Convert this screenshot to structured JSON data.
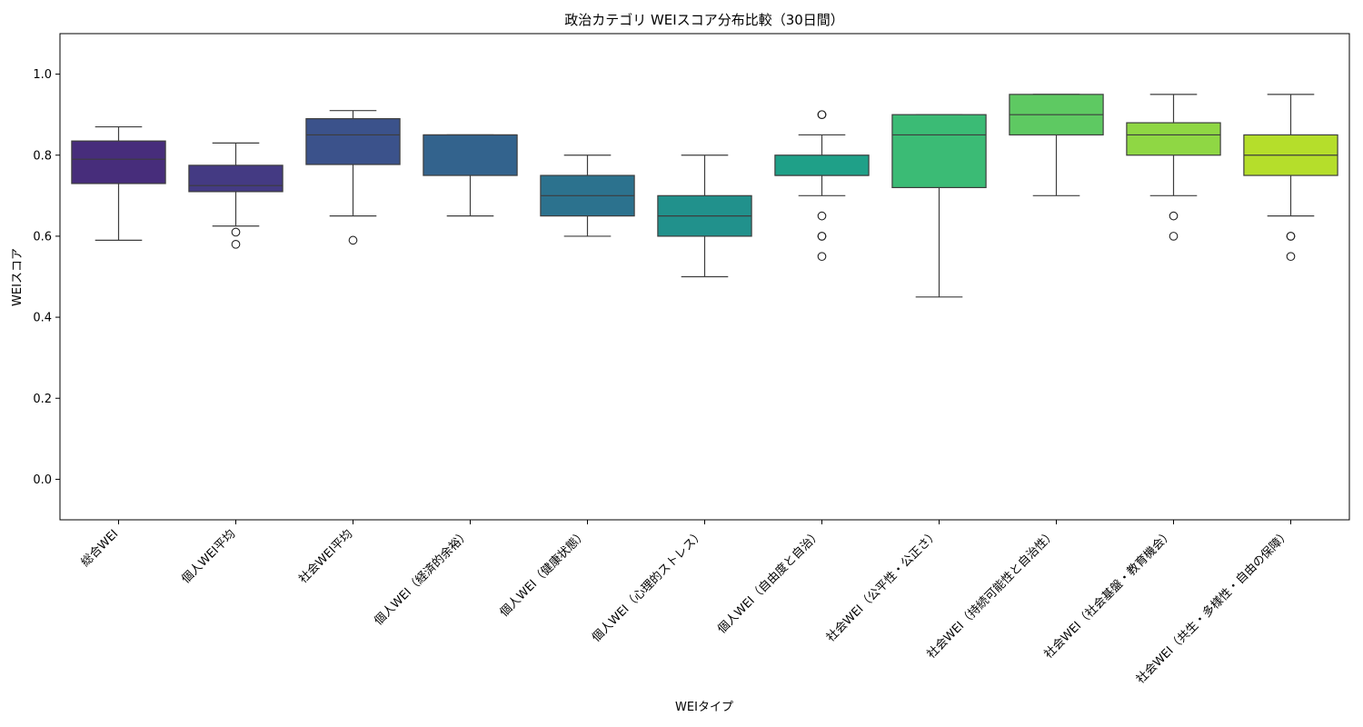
{
  "chart_data": {
    "type": "box",
    "title": "政治カテゴリ WEIスコア分布比較（30日間）",
    "xlabel": "WEIタイプ",
    "ylabel": "WEIスコア",
    "ylim": [
      -0.1,
      1.1
    ],
    "yticks": [
      "0.0",
      "0.2",
      "0.4",
      "0.6",
      "0.8",
      "1.0"
    ],
    "grid": false,
    "legend": "none",
    "categories": [
      "総合WEI",
      "個人WEI平均",
      "社会WEI平均",
      "個人WEI（経済的余裕）",
      "個人WEI（健康状態）",
      "個人WEI（心理的ストレス）",
      "個人WEI（自由度と自治）",
      "社会WEI（公平性・公正さ）",
      "社会WEI（持続可能性と自治性）",
      "社会WEI（社会基盤・教育機会）",
      "社会WEI（共生・多様性・自由の保障）"
    ],
    "boxes": [
      {
        "whislo": 0.59,
        "q1": 0.73,
        "med": 0.79,
        "q3": 0.835,
        "whishi": 0.87,
        "fliers": []
      },
      {
        "whislo": 0.625,
        "q1": 0.71,
        "med": 0.725,
        "q3": 0.775,
        "whishi": 0.83,
        "fliers": [
          0.61,
          0.58
        ]
      },
      {
        "whislo": 0.65,
        "q1": 0.777,
        "med": 0.85,
        "q3": 0.89,
        "whishi": 0.91,
        "fliers": [
          0.59
        ]
      },
      {
        "whislo": 0.65,
        "q1": 0.75,
        "med": 0.85,
        "q3": 0.85,
        "whishi": 0.85,
        "fliers": []
      },
      {
        "whislo": 0.6,
        "q1": 0.65,
        "med": 0.7,
        "q3": 0.75,
        "whishi": 0.8,
        "fliers": []
      },
      {
        "whislo": 0.5,
        "q1": 0.6,
        "med": 0.65,
        "q3": 0.7,
        "whishi": 0.8,
        "fliers": []
      },
      {
        "whislo": 0.7,
        "q1": 0.75,
        "med": 0.75,
        "q3": 0.8,
        "whishi": 0.85,
        "fliers": [
          0.9,
          0.9,
          0.65,
          0.6,
          0.6,
          0.55
        ]
      },
      {
        "whislo": 0.45,
        "q1": 0.72,
        "med": 0.85,
        "q3": 0.9,
        "whishi": 0.9,
        "fliers": []
      },
      {
        "whislo": 0.7,
        "q1": 0.85,
        "med": 0.9,
        "q3": 0.95,
        "whishi": 0.95,
        "fliers": []
      },
      {
        "whislo": 0.7,
        "q1": 0.8,
        "med": 0.85,
        "q3": 0.88,
        "whishi": 0.95,
        "fliers": [
          0.65,
          0.6
        ]
      },
      {
        "whislo": 0.65,
        "q1": 0.75,
        "med": 0.8,
        "q3": 0.85,
        "whishi": 0.95,
        "fliers": [
          0.6,
          0.6,
          0.55
        ]
      }
    ],
    "colors": [
      "#472d7b",
      "#443a83",
      "#3b528b",
      "#33638d",
      "#2c728e",
      "#21918c",
      "#1fa088",
      "#3bbb75",
      "#5ec962",
      "#8fd744",
      "#b5de2b"
    ]
  }
}
